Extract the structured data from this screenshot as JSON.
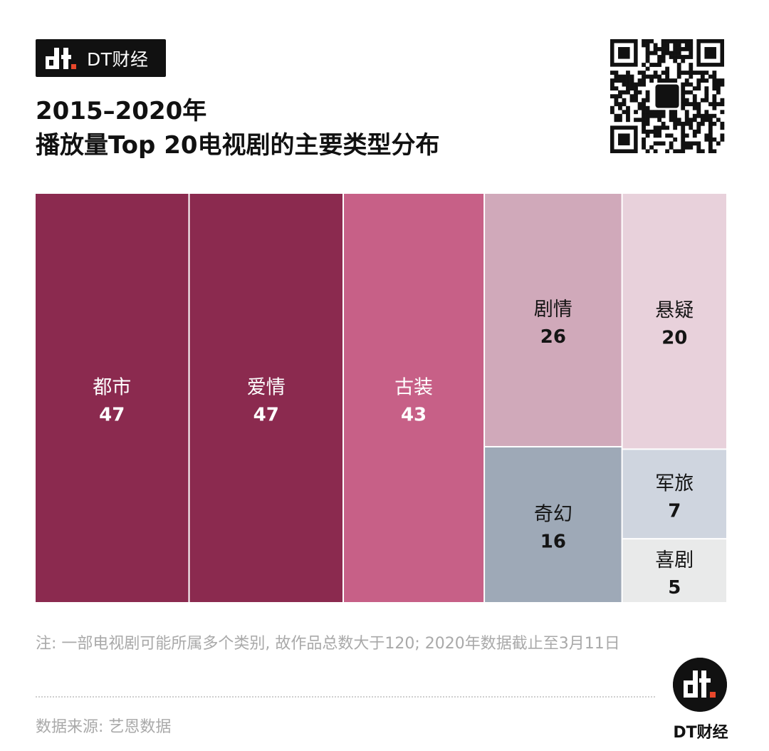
{
  "brand": {
    "tag_text": "DT财经",
    "footer_text": "DT财经"
  },
  "title": {
    "line1": "2015–2020年",
    "line2": "播放量Top 20电视剧的主要类型分布"
  },
  "note": "注: 一部电视剧可能所属多个类别, 故作品总数大于120; 2020年数据截止至3月11日",
  "source": "数据来源: 艺恩数据",
  "colors": {
    "dark_red": "#8b2a4f",
    "rose": "#c76087",
    "pink_light": "#d0a9ba",
    "pink_pale": "#e8d1db",
    "steel": "#9ea9b7",
    "grey_blue": "#cfd5df",
    "grey_pale": "#e9eaea"
  },
  "chart_data": {
    "type": "treemap",
    "title": "2015–2020年 播放量Top 20电视剧的主要类型分布",
    "items": [
      {
        "label": "都市",
        "value": 47,
        "color": "#8b2a4f"
      },
      {
        "label": "爱情",
        "value": 47,
        "color": "#8b2a4f"
      },
      {
        "label": "古装",
        "value": 43,
        "color": "#c76087"
      },
      {
        "label": "剧情",
        "value": 26,
        "color": "#d0a9ba"
      },
      {
        "label": "悬疑",
        "value": 20,
        "color": "#e8d1db"
      },
      {
        "label": "奇幻",
        "value": 16,
        "color": "#9ea9b7"
      },
      {
        "label": "军旅",
        "value": 7,
        "color": "#cfd5df"
      },
      {
        "label": "喜剧",
        "value": 5,
        "color": "#e9eaea"
      }
    ]
  }
}
